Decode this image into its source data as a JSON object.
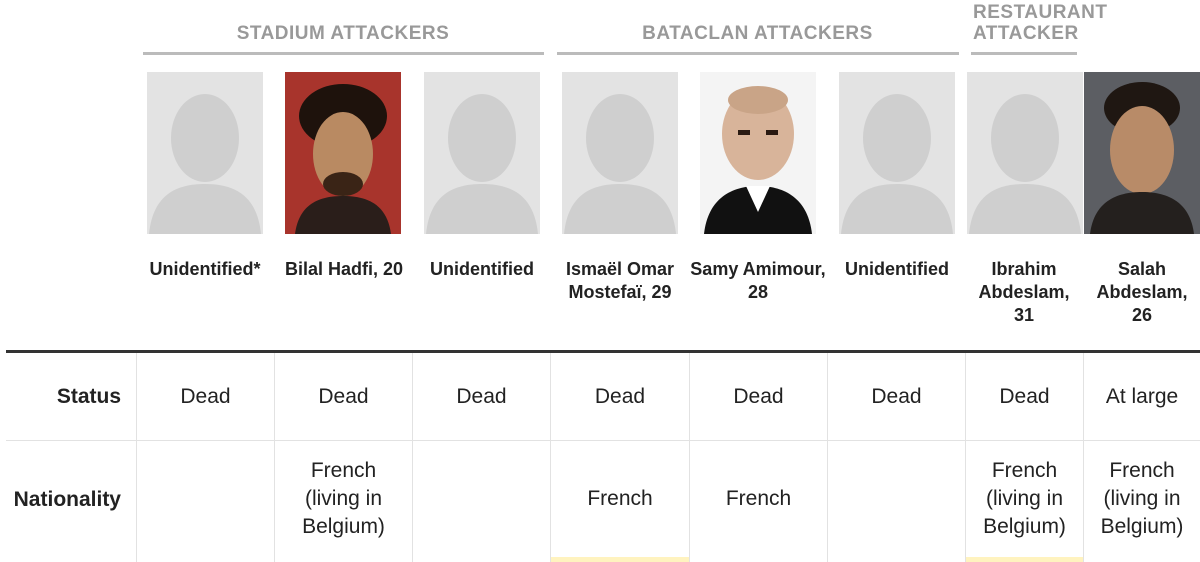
{
  "groups": [
    {
      "label": "STADIUM ATTACKERS"
    },
    {
      "label": "BATACLAN ATTACKERS"
    },
    {
      "label": "RESTAURANT ATTACKER"
    }
  ],
  "attackers": [
    {
      "name": "Unidentified*",
      "photo": "silhouette-placeholder",
      "status": "Dead",
      "nationality": ""
    },
    {
      "name": "Bilal Hadfi, 20",
      "photo": "portrait-photo",
      "status": "Dead",
      "nationality": "French (living in Belgium)"
    },
    {
      "name": "Unidentified",
      "photo": "silhouette-placeholder",
      "status": "Dead",
      "nationality": ""
    },
    {
      "name": "Ismaël Omar Mostefaï, 29",
      "photo": "silhouette-placeholder",
      "status": "Dead",
      "nationality": "French"
    },
    {
      "name": "Samy Amimour, 28",
      "photo": "portrait-photo",
      "status": "Dead",
      "nationality": "French"
    },
    {
      "name": "Unidentified",
      "photo": "silhouette-placeholder",
      "status": "Dead",
      "nationality": ""
    },
    {
      "name": "Ibrahim Abdeslam, 31",
      "photo": "silhouette-placeholder",
      "status": "Dead",
      "nationality": "French (living in Belgium)"
    },
    {
      "name": "Salah Abdeslam, 26",
      "photo": "portrait-photo",
      "status": "At large",
      "nationality": "French (living in Belgium)"
    }
  ],
  "rows": {
    "status_label": "Status",
    "nationality_label": "Nationality"
  },
  "colors": {
    "group_text": "#999999",
    "rule": "#bbbbbb",
    "placeholder_bg": "#e3e3e3",
    "silhouette": "#cfcfcf",
    "highlight": "#fff3bf"
  }
}
